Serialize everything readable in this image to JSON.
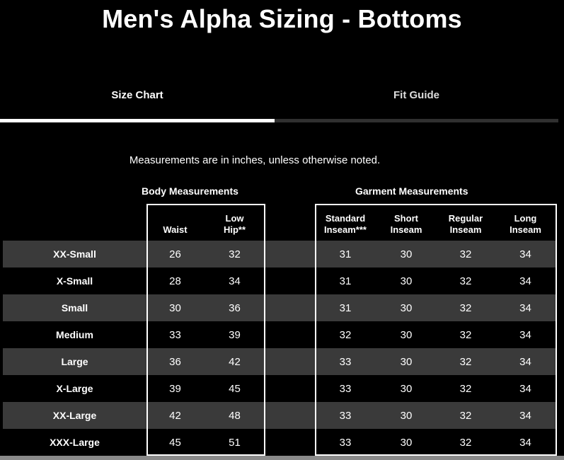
{
  "title": "Men's Alpha Sizing - Bottoms",
  "tabs": [
    {
      "label": "Size Chart",
      "active": true
    },
    {
      "label": "Fit Guide",
      "active": false
    }
  ],
  "note": "Measurements are in inches, unless otherwise noted.",
  "groups": {
    "body": "Body Measurements",
    "garment": "Garment Measurements"
  },
  "table": {
    "columns": [
      "Waist",
      "Low\nHip**",
      "Standard\nInseam***",
      "Short\nInseam",
      "Regular\nInseam",
      "Long\nInseam"
    ],
    "rows": [
      {
        "size": "XX-Small",
        "values": [
          "26",
          "32",
          "31",
          "30",
          "32",
          "34"
        ]
      },
      {
        "size": "X-Small",
        "values": [
          "28",
          "34",
          "31",
          "30",
          "32",
          "34"
        ]
      },
      {
        "size": "Small",
        "values": [
          "30",
          "36",
          "31",
          "30",
          "32",
          "34"
        ]
      },
      {
        "size": "Medium",
        "values": [
          "33",
          "39",
          "32",
          "30",
          "32",
          "34"
        ]
      },
      {
        "size": "Large",
        "values": [
          "36",
          "42",
          "33",
          "30",
          "32",
          "34"
        ]
      },
      {
        "size": "X-Large",
        "values": [
          "39",
          "45",
          "33",
          "30",
          "32",
          "34"
        ]
      },
      {
        "size": "XX-Large",
        "values": [
          "42",
          "48",
          "33",
          "30",
          "32",
          "34"
        ]
      },
      {
        "size": "XXX-Large",
        "values": [
          "45",
          "51",
          "33",
          "30",
          "32",
          "34"
        ]
      }
    ]
  },
  "colors": {
    "background": "#000000",
    "stripe": "#3a3a3a",
    "active_underline": "#ffffff",
    "inactive_underline": "#303030",
    "scrollbar": "#8a8a8a",
    "text": "#ffffff"
  }
}
